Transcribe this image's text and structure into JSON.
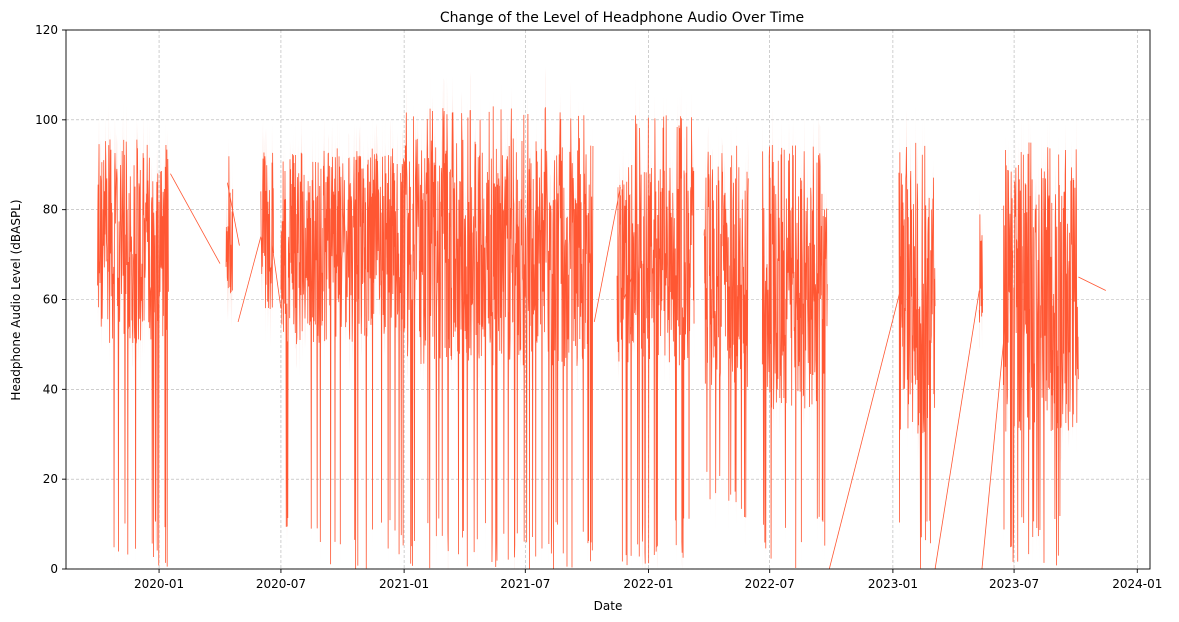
{
  "chart_data": {
    "type": "line",
    "title": "Change of the Level of Headphone Audio Over Time",
    "xlabel": "Date",
    "ylabel": "Headphone Audio Level (dBASPL)",
    "ylim": [
      0,
      120
    ],
    "xlim": [
      "2019-08-15",
      "2024-01-20"
    ],
    "y_ticks": [
      0,
      20,
      40,
      60,
      80,
      100,
      120
    ],
    "x_ticks": [
      "2020-01",
      "2020-07",
      "2021-01",
      "2021-07",
      "2022-01",
      "2022-07",
      "2023-01",
      "2023-07",
      "2024-01"
    ],
    "grid": true,
    "line_color": "#FF5733",
    "band_color": "#FBC9BC",
    "series": [
      {
        "segments": [
          {
            "start": "2019-10-01",
            "end": "2020-01-15",
            "min": 0,
            "max": 96,
            "typ_low": 50,
            "typ_high": 93
          },
          {
            "start": "2020-04-10",
            "end": "2020-04-20",
            "min": 55,
            "max": 92,
            "typ_low": 60,
            "typ_high": 86
          },
          {
            "start": "2020-06-01",
            "end": "2020-06-20",
            "min": 44,
            "max": 93,
            "typ_low": 55,
            "typ_high": 92
          },
          {
            "start": "2020-07-01",
            "end": "2020-12-31",
            "min": 0,
            "max": 94,
            "typ_low": 50,
            "typ_high": 92
          },
          {
            "start": "2021-01-01",
            "end": "2021-10-10",
            "min": 0,
            "max": 103,
            "typ_low": 45,
            "typ_high": 96
          },
          {
            "start": "2021-11-15",
            "end": "2022-03-10",
            "min": 0,
            "max": 101,
            "typ_low": 45,
            "typ_high": 90
          },
          {
            "start": "2022-03-25",
            "end": "2022-05-30",
            "min": 10,
            "max": 95,
            "typ_low": 40,
            "typ_high": 90
          },
          {
            "start": "2022-06-20",
            "end": "2022-09-25",
            "min": 0,
            "max": 95,
            "typ_low": 35,
            "typ_high": 93
          },
          {
            "start": "2023-01-10",
            "end": "2023-03-05",
            "min": 0,
            "max": 95,
            "typ_low": 30,
            "typ_high": 89
          },
          {
            "start": "2023-05-10",
            "end": "2023-05-15",
            "min": 40,
            "max": 80,
            "typ_low": 45,
            "typ_high": 75
          },
          {
            "start": "2023-06-15",
            "end": "2023-10-05",
            "min": 0,
            "max": 95,
            "typ_low": 30,
            "typ_high": 90
          }
        ],
        "connectors": [
          [
            [
              "2020-01-18",
              88
            ],
            [
              "2020-04-01",
              68
            ]
          ],
          [
            [
              "2020-04-12",
              86
            ],
            [
              "2020-04-30",
              72
            ]
          ],
          [
            [
              "2020-04-28",
              55
            ],
            [
              "2020-06-01",
              74
            ]
          ],
          [
            [
              "2020-06-18",
              72
            ],
            [
              "2020-07-01",
              58
            ]
          ],
          [
            [
              "2021-10-12",
              55
            ],
            [
              "2021-11-20",
              85
            ]
          ],
          [
            [
              "2021-11-25",
              60
            ],
            [
              "2021-12-10",
              66
            ]
          ],
          [
            [
              "2022-09-28",
              0
            ],
            [
              "2023-01-12",
              62
            ]
          ],
          [
            [
              "2023-03-05",
              0
            ],
            [
              "2023-05-10",
              62
            ]
          ],
          [
            [
              "2023-05-14",
              0
            ],
            [
              "2023-06-20",
              58
            ]
          ],
          [
            [
              "2023-10-05",
              65
            ],
            [
              "2023-11-15",
              62
            ]
          ]
        ]
      }
    ]
  }
}
